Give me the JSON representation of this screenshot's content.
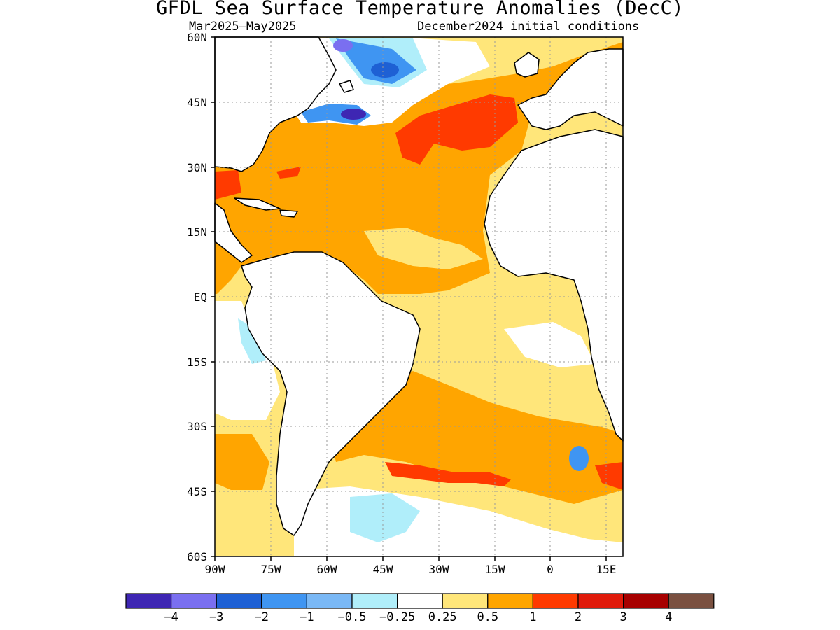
{
  "title": "GFDL Sea Surface Temperature Anomalies (DecC)",
  "season": "Mar2025–May2025",
  "init": "December2024 initial conditions",
  "lat_labels": [
    "60N",
    "45N",
    "30N",
    "15N",
    "EQ",
    "15S",
    "30S",
    "45S",
    "60S"
  ],
  "lon_labels": [
    "90W",
    "75W",
    "60W",
    "45W",
    "30W",
    "15W",
    "0",
    "15E"
  ],
  "colorbar": {
    "colors": [
      "#3e26b3",
      "#7a6ff0",
      "#1e60d4",
      "#3f95f2",
      "#7ab8f5",
      "#b0eefa",
      "#ffffff",
      "#ffe67a",
      "#ffa500",
      "#ff3a00",
      "#e01a0a",
      "#a70000",
      "#7a5040"
    ],
    "labels": [
      "−4",
      "−3",
      "−2",
      "−1",
      "−0.5",
      "−0.25",
      "0.25",
      "0.5",
      "1",
      "2",
      "3",
      "4"
    ]
  },
  "colors": {
    "land": "#ffffff",
    "coast": "#000000",
    "grid": "#999999"
  }
}
